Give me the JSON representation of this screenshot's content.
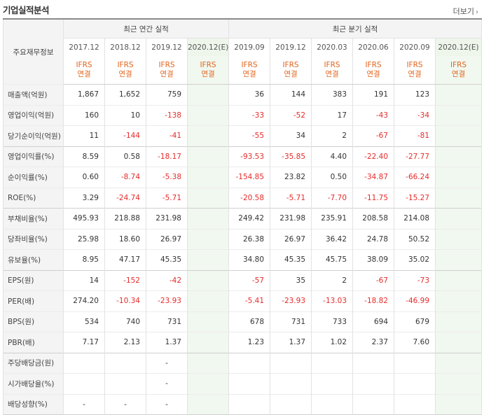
{
  "title": "기업실적분석",
  "more_label": "더보기",
  "corner_label": "주요재무정보",
  "annual_header": "최근 연간 실적",
  "quarter_header": "최근 분기 실적",
  "annual_periods": [
    "2017.12",
    "2018.12",
    "2019.12",
    "2020.12(E)"
  ],
  "quarter_periods": [
    "2019.09",
    "2019.12",
    "2020.03",
    "2020.06",
    "2020.09",
    "2020.12(E)"
  ],
  "basis_line1": "IFRS",
  "basis_line2": "연결",
  "rows": [
    {
      "label": "매출액(억원)",
      "group_start": false,
      "annual": [
        "1,867",
        "1,652",
        "759",
        ""
      ],
      "quarter": [
        "36",
        "144",
        "383",
        "191",
        "123",
        ""
      ]
    },
    {
      "label": "영업이익(억원)",
      "group_start": false,
      "annual": [
        "160",
        "10",
        "-138",
        ""
      ],
      "quarter": [
        "-33",
        "-52",
        "17",
        "-43",
        "-34",
        ""
      ]
    },
    {
      "label": "당기순이익(억원)",
      "group_start": false,
      "annual": [
        "11",
        "-144",
        "-41",
        ""
      ],
      "quarter": [
        "-55",
        "34",
        "2",
        "-67",
        "-81",
        ""
      ]
    },
    {
      "label": "영업이익률(%)",
      "group_start": true,
      "annual": [
        "8.59",
        "0.58",
        "-18.17",
        ""
      ],
      "quarter": [
        "-93.53",
        "-35.85",
        "4.40",
        "-22.40",
        "-27.77",
        ""
      ]
    },
    {
      "label": "순이익률(%)",
      "group_start": false,
      "annual": [
        "0.60",
        "-8.74",
        "-5.38",
        ""
      ],
      "quarter": [
        "-154.85",
        "23.82",
        "0.50",
        "-34.87",
        "-66.24",
        ""
      ]
    },
    {
      "label": "ROE(%)",
      "group_start": false,
      "annual": [
        "3.29",
        "-24.74",
        "-5.71",
        ""
      ],
      "quarter": [
        "-20.58",
        "-5.71",
        "-7.70",
        "-11.75",
        "-15.27",
        ""
      ]
    },
    {
      "label": "부채비율(%)",
      "group_start": true,
      "annual": [
        "495.93",
        "218.88",
        "231.98",
        ""
      ],
      "quarter": [
        "249.42",
        "231.98",
        "235.91",
        "208.58",
        "214.08",
        ""
      ]
    },
    {
      "label": "당좌비율(%)",
      "group_start": false,
      "annual": [
        "25.98",
        "18.60",
        "26.97",
        ""
      ],
      "quarter": [
        "26.38",
        "26.97",
        "36.42",
        "24.78",
        "50.52",
        ""
      ]
    },
    {
      "label": "유보율(%)",
      "group_start": false,
      "annual": [
        "8.95",
        "47.17",
        "45.35",
        ""
      ],
      "quarter": [
        "34.80",
        "45.35",
        "45.75",
        "38.09",
        "35.02",
        ""
      ]
    },
    {
      "label": "EPS(원)",
      "group_start": true,
      "annual": [
        "14",
        "-152",
        "-42",
        ""
      ],
      "quarter": [
        "-57",
        "35",
        "2",
        "-67",
        "-73",
        ""
      ]
    },
    {
      "label": "PER(배)",
      "group_start": false,
      "annual": [
        "274.20",
        "-10.34",
        "-23.93",
        ""
      ],
      "quarter": [
        "-5.41",
        "-23.93",
        "-13.03",
        "-18.82",
        "-46.99",
        ""
      ]
    },
    {
      "label": "BPS(원)",
      "group_start": false,
      "annual": [
        "534",
        "740",
        "731",
        ""
      ],
      "quarter": [
        "678",
        "731",
        "733",
        "694",
        "679",
        ""
      ]
    },
    {
      "label": "PBR(배)",
      "group_start": false,
      "annual": [
        "7.17",
        "2.13",
        "1.37",
        ""
      ],
      "quarter": [
        "1.23",
        "1.37",
        "1.02",
        "2.37",
        "7.60",
        ""
      ]
    },
    {
      "label": "주당배당금(원)",
      "group_start": true,
      "annual": [
        "",
        "",
        "-",
        ""
      ],
      "quarter": [
        "",
        "",
        "",
        "",
        "",
        ""
      ]
    },
    {
      "label": "시가배당율(%)",
      "group_start": false,
      "annual": [
        "",
        "",
        "-",
        ""
      ],
      "quarter": [
        "",
        "",
        "",
        "",
        "",
        ""
      ]
    },
    {
      "label": "배당성향(%)",
      "group_start": false,
      "annual": [
        "-",
        "-",
        "-",
        ""
      ],
      "quarter": [
        "",
        "",
        "",
        "",
        "",
        ""
      ]
    }
  ]
}
